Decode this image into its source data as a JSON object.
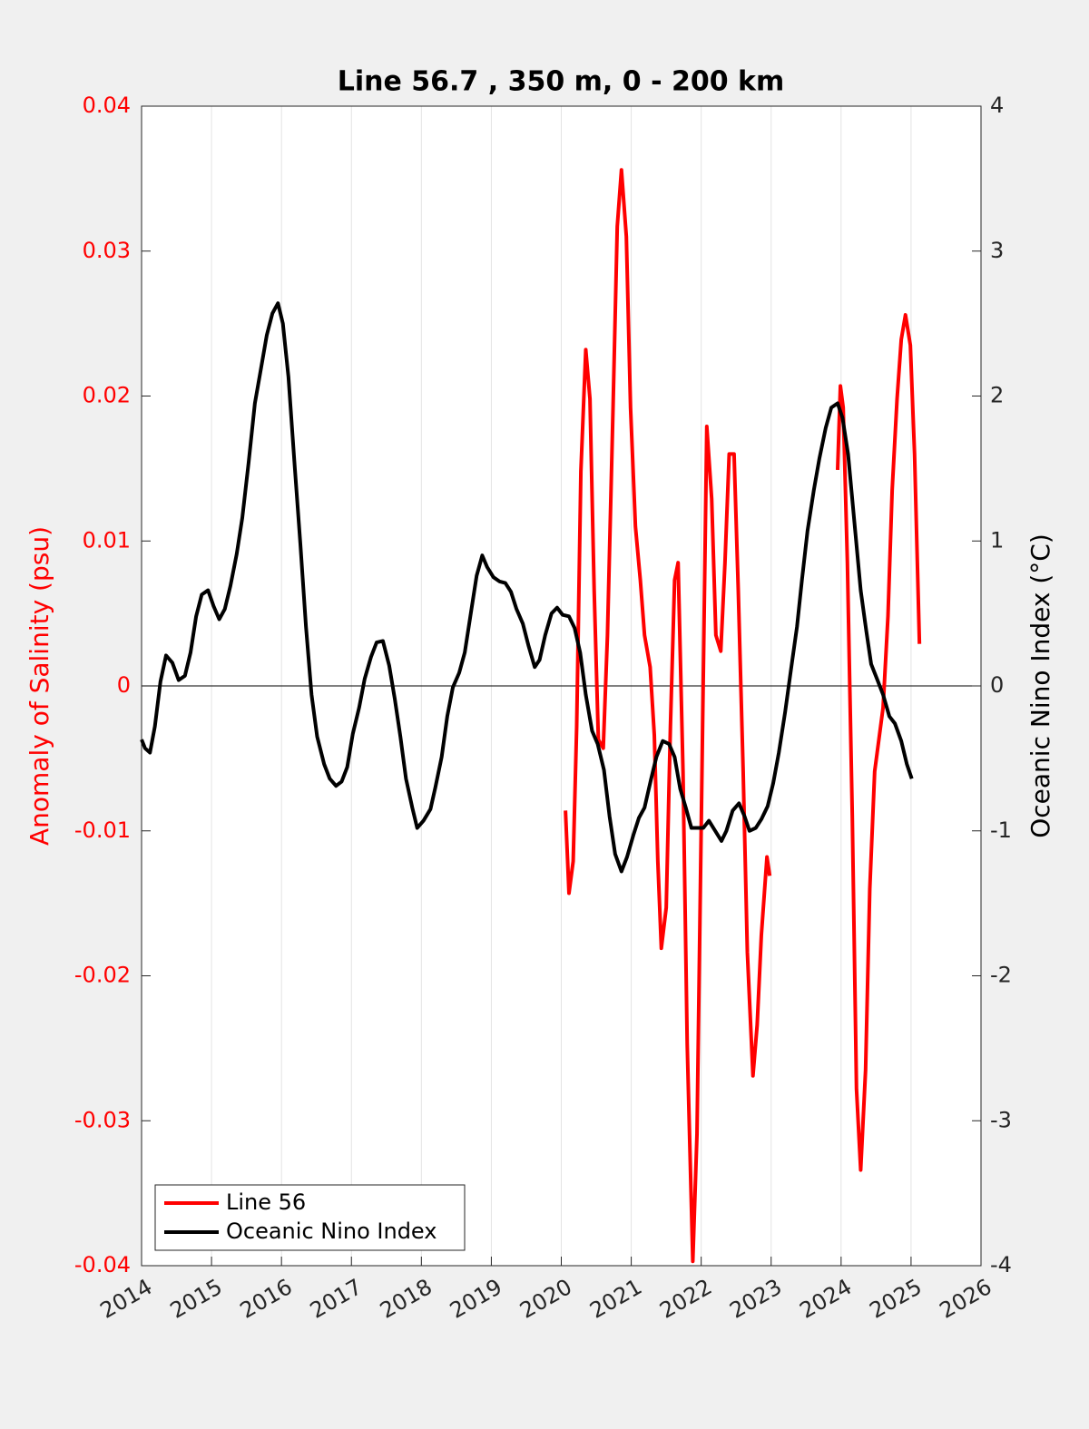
{
  "chart_data": {
    "type": "line",
    "title": "Line 56.7 , 350 m, 0 - 200 km",
    "ylabel": "Anomaly of Salinity (psu)",
    "y2label": "Oceanic Nino Index (°C)",
    "xlim": [
      2014,
      2026
    ],
    "xticks": [
      2014,
      2015,
      2016,
      2017,
      2018,
      2019,
      2020,
      2021,
      2022,
      2023,
      2024,
      2025,
      2026
    ],
    "ylim": [
      -0.04,
      0.04
    ],
    "yticks": [
      -0.04,
      -0.03,
      -0.02,
      -0.01,
      0,
      0.01,
      0.02,
      0.03,
      0.04
    ],
    "y2lim": [
      -4,
      4
    ],
    "y2ticks": [
      -4,
      -3,
      -2,
      -1,
      0,
      1,
      2,
      3,
      4
    ],
    "grid": "x",
    "legend": "lower left",
    "series": [
      {
        "name": "Line 56",
        "color": "#ff0000",
        "x": [
          2020.06,
          2020.11,
          2020.17,
          2020.22,
          2020.28,
          2020.35,
          2020.41,
          2020.47,
          2020.53,
          2020.6,
          2020.66,
          2020.74,
          2020.8,
          2020.86,
          2020.93,
          2020.99,
          2021.06,
          2021.13,
          2021.19,
          2021.27,
          2021.33,
          2021.38,
          2021.43,
          2021.5,
          2021.56,
          2021.62,
          2021.67,
          2021.74,
          2021.8,
          2021.88,
          2021.94,
          2022.02,
          2022.08,
          2022.15,
          2022.21,
          2022.28,
          2022.34,
          2022.4,
          2022.47,
          2022.53,
          2022.6,
          2022.66,
          2022.74,
          2022.8,
          2022.86,
          2022.94,
          2022.98,
          2023.5,
          2023.95,
          2023.99,
          2024.03,
          2024.09,
          2024.16,
          2024.22,
          2024.28,
          2024.35,
          2024.41,
          2024.48,
          2024.54,
          2024.6,
          2024.67,
          2024.73,
          2024.8,
          2024.86,
          2024.92,
          2024.99,
          2025.05,
          2025.12
        ],
        "values": [
          -0.0086,
          -0.0143,
          -0.0121,
          -0.0028,
          0.0148,
          0.0232,
          0.0198,
          0.0066,
          -0.0037,
          -0.0043,
          0.0035,
          0.0192,
          0.0317,
          0.0356,
          0.031,
          0.0192,
          0.011,
          0.0073,
          0.0035,
          0.0013,
          -0.0034,
          -0.0121,
          -0.0181,
          -0.0153,
          -0.0028,
          0.0073,
          0.0085,
          -0.0059,
          -0.0247,
          -0.0397,
          -0.0309,
          -0.0028,
          0.0179,
          0.0129,
          0.0035,
          0.0024,
          0.0085,
          0.016,
          0.016,
          0.0066,
          -0.0059,
          -0.0184,
          -0.0269,
          -0.0234,
          -0.0172,
          -0.0118,
          -0.0131,
          null,
          0.0149,
          0.0207,
          0.0192,
          0.0085,
          -0.009,
          -0.0278,
          -0.0334,
          -0.0265,
          -0.014,
          -0.0059,
          -0.0037,
          -0.0015,
          0.0048,
          0.0135,
          0.0198,
          0.0239,
          0.0256,
          0.0235,
          0.016,
          0.0029
        ]
      },
      {
        "name": "Oceanic Nino Index",
        "color": "#000000",
        "axis": "y2",
        "x": [
          2014.0,
          2014.05,
          2014.12,
          2014.19,
          2014.27,
          2014.35,
          2014.44,
          2014.53,
          2014.62,
          2014.7,
          2014.78,
          2014.86,
          2014.95,
          2015.03,
          2015.11,
          2015.19,
          2015.27,
          2015.36,
          2015.44,
          2015.53,
          2015.62,
          2015.7,
          2015.79,
          2015.87,
          2015.95,
          2016.02,
          2016.1,
          2016.19,
          2016.27,
          2016.35,
          2016.43,
          2016.51,
          2016.61,
          2016.69,
          2016.78,
          2016.86,
          2016.94,
          2017.02,
          2017.11,
          2017.19,
          2017.28,
          2017.36,
          2017.45,
          2017.54,
          2017.62,
          2017.7,
          2017.78,
          2017.87,
          2017.94,
          2018.03,
          2018.13,
          2018.2,
          2018.29,
          2018.37,
          2018.45,
          2018.54,
          2018.62,
          2018.7,
          2018.79,
          2018.87,
          2018.94,
          2019.03,
          2019.12,
          2019.2,
          2019.28,
          2019.36,
          2019.45,
          2019.53,
          2019.62,
          2019.69,
          2019.77,
          2019.86,
          2019.94,
          2020.02,
          2020.11,
          2020.19,
          2020.27,
          2020.35,
          2020.44,
          2020.52,
          2020.61,
          2020.69,
          2020.77,
          2020.86,
          2020.94,
          2021.03,
          2021.11,
          2021.19,
          2021.28,
          2021.36,
          2021.45,
          2021.54,
          2021.62,
          2021.7,
          2021.78,
          2021.86,
          2021.94,
          2022.03,
          2022.11,
          2022.2,
          2022.29,
          2022.36,
          2022.45,
          2022.54,
          2022.62,
          2022.69,
          2022.78,
          2022.86,
          2022.95,
          2023.03,
          2023.11,
          2023.2,
          2023.28,
          2023.37,
          2023.44,
          2023.52,
          2023.61,
          2023.69,
          2023.78,
          2023.86,
          2023.95,
          2024.02,
          2024.1,
          2024.19,
          2024.28,
          2024.36,
          2024.43,
          2024.52,
          2024.6,
          2024.69,
          2024.77,
          2024.86,
          2024.94,
          2025.01
        ],
        "values": [
          -0.37,
          -0.43,
          -0.46,
          -0.28,
          0.03,
          0.21,
          0.16,
          0.04,
          0.07,
          0.23,
          0.48,
          0.63,
          0.66,
          0.55,
          0.46,
          0.53,
          0.69,
          0.91,
          1.16,
          1.54,
          1.95,
          2.17,
          2.42,
          2.57,
          2.64,
          2.5,
          2.13,
          1.51,
          0.98,
          0.41,
          -0.06,
          -0.35,
          -0.54,
          -0.64,
          -0.69,
          -0.66,
          -0.56,
          -0.33,
          -0.15,
          0.05,
          0.2,
          0.3,
          0.31,
          0.14,
          -0.09,
          -0.35,
          -0.64,
          -0.84,
          -0.98,
          -0.93,
          -0.85,
          -0.7,
          -0.49,
          -0.21,
          -0.01,
          0.09,
          0.23,
          0.48,
          0.76,
          0.9,
          0.82,
          0.75,
          0.72,
          0.71,
          0.65,
          0.53,
          0.43,
          0.28,
          0.13,
          0.18,
          0.35,
          0.5,
          0.54,
          0.49,
          0.48,
          0.4,
          0.23,
          -0.06,
          -0.31,
          -0.4,
          -0.58,
          -0.9,
          -1.16,
          -1.28,
          -1.18,
          -1.03,
          -0.91,
          -0.84,
          -0.65,
          -0.49,
          -0.38,
          -0.4,
          -0.49,
          -0.71,
          -0.84,
          -0.98,
          -0.98,
          -0.98,
          -0.93,
          -1.0,
          -1.07,
          -1.0,
          -0.86,
          -0.81,
          -0.9,
          -1.0,
          -0.98,
          -0.92,
          -0.83,
          -0.67,
          -0.46,
          -0.18,
          0.1,
          0.41,
          0.73,
          1.07,
          1.35,
          1.57,
          1.78,
          1.92,
          1.95,
          1.85,
          1.6,
          1.13,
          0.66,
          0.38,
          0.15,
          0.04,
          -0.06,
          -0.21,
          -0.26,
          -0.38,
          -0.54,
          -0.64
        ]
      }
    ]
  }
}
